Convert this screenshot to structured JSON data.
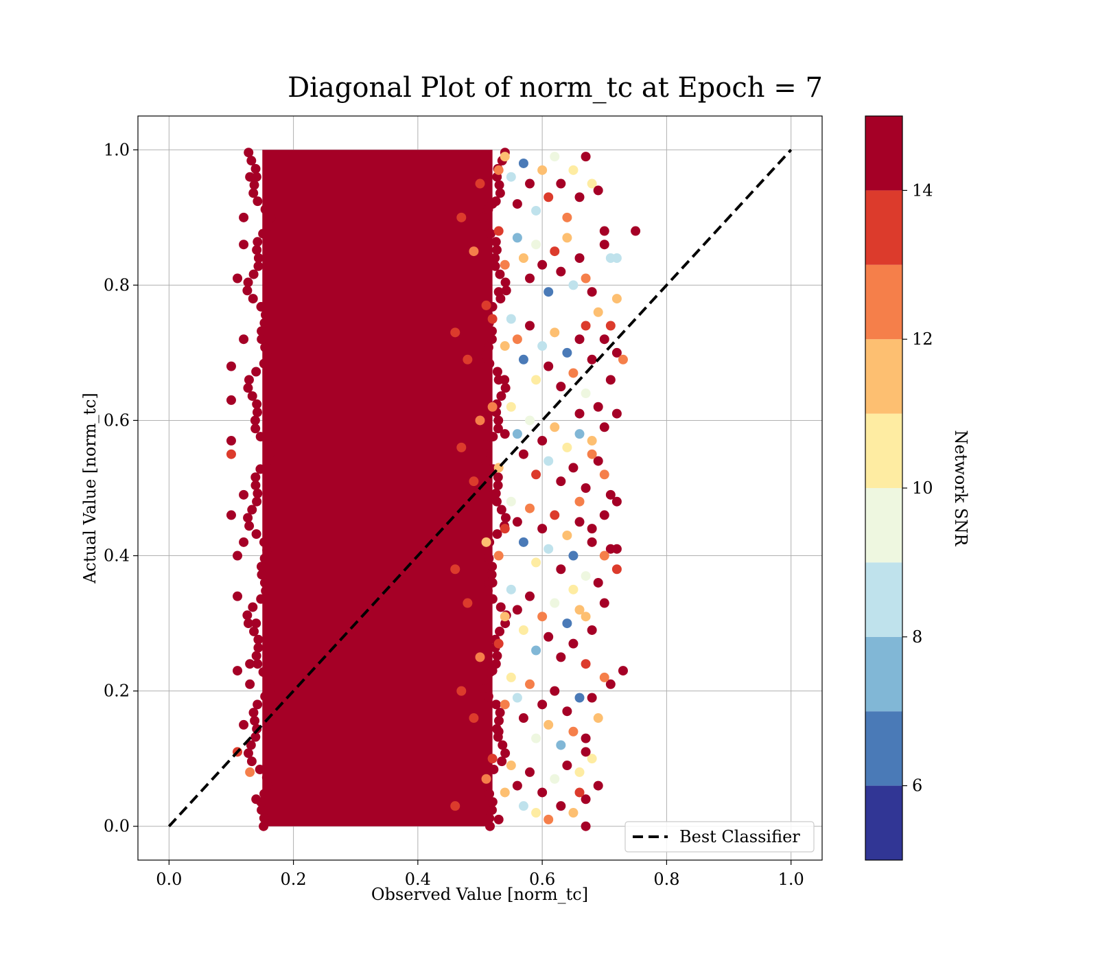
{
  "chart_data": {
    "type": "scatter",
    "title": "Diagonal Plot of norm_tc at Epoch = 7",
    "xlabel": "Observed Value [norm_tc]",
    "ylabel": "Actual Value [norm_tc]",
    "xlim": [
      -0.05,
      1.05
    ],
    "ylim": [
      -0.05,
      1.05
    ],
    "x_ticks": [
      0.0,
      0.2,
      0.4,
      0.6,
      0.8,
      1.0
    ],
    "y_ticks": [
      0.0,
      0.2,
      0.4,
      0.6,
      0.8,
      1.0
    ],
    "x_tick_labels": [
      "0.0",
      "0.2",
      "0.4",
      "0.6",
      "0.8",
      "1.0"
    ],
    "y_tick_labels": [
      "0.0",
      "0.2",
      "0.4",
      "0.6",
      "0.8",
      "1.0"
    ],
    "grid": true,
    "legend": {
      "placement": "lower-right",
      "entries": [
        "Best Classifier"
      ]
    },
    "reference_line": {
      "name": "Best Classifier",
      "style": "dashed",
      "color": "#000000",
      "x": [
        0.0,
        1.0
      ],
      "y": [
        0.0,
        1.0
      ]
    },
    "colorbar": {
      "label": "Network SNR",
      "range": [
        5,
        15
      ],
      "tick_values": [
        6,
        8,
        10,
        12,
        14
      ],
      "tick_labels": [
        "6",
        "8",
        "10",
        "12",
        "14"
      ],
      "bands": [
        {
          "from": 5,
          "to": 6,
          "color": "#313695"
        },
        {
          "from": 6,
          "to": 7,
          "color": "#4a7ab7"
        },
        {
          "from": 7,
          "to": 8,
          "color": "#81b7d6"
        },
        {
          "from": 8,
          "to": 9,
          "color": "#bfe2ec"
        },
        {
          "from": 9,
          "to": 10,
          "color": "#eef7e0"
        },
        {
          "from": 10,
          "to": 11,
          "color": "#feeca2"
        },
        {
          "from": 11,
          "to": 12,
          "color": "#fdbf71"
        },
        {
          "from": 12,
          "to": 13,
          "color": "#f57f4a"
        },
        {
          "from": 13,
          "to": 14,
          "color": "#dc3b2c"
        },
        {
          "from": 14,
          "to": 15,
          "color": "#a50026"
        }
      ]
    },
    "dense_region": {
      "x_range": [
        0.15,
        0.52
      ],
      "y_range": [
        0.0,
        1.0
      ],
      "snr": 15
    },
    "points": [
      {
        "x": 0.13,
        "y": 0.96,
        "snr": 15
      },
      {
        "x": 0.12,
        "y": 0.9,
        "snr": 15
      },
      {
        "x": 0.11,
        "y": 0.81,
        "snr": 15
      },
      {
        "x": 0.1,
        "y": 0.68,
        "snr": 15
      },
      {
        "x": 0.1,
        "y": 0.63,
        "snr": 15
      },
      {
        "x": 0.1,
        "y": 0.57,
        "snr": 15
      },
      {
        "x": 0.1,
        "y": 0.55,
        "snr": 13
      },
      {
        "x": 0.1,
        "y": 0.46,
        "snr": 15
      },
      {
        "x": 0.11,
        "y": 0.4,
        "snr": 15
      },
      {
        "x": 0.11,
        "y": 0.34,
        "snr": 15
      },
      {
        "x": 0.11,
        "y": 0.23,
        "snr": 14
      },
      {
        "x": 0.13,
        "y": 0.24,
        "snr": 15
      },
      {
        "x": 0.13,
        "y": 0.21,
        "snr": 15
      },
      {
        "x": 0.12,
        "y": 0.15,
        "snr": 15
      },
      {
        "x": 0.11,
        "y": 0.11,
        "snr": 13
      },
      {
        "x": 0.13,
        "y": 0.08,
        "snr": 12
      },
      {
        "x": 0.12,
        "y": 0.86,
        "snr": 15
      },
      {
        "x": 0.12,
        "y": 0.72,
        "snr": 15
      },
      {
        "x": 0.12,
        "y": 0.49,
        "snr": 15
      },
      {
        "x": 0.12,
        "y": 0.42,
        "snr": 15
      },
      {
        "x": 0.14,
        "y": 0.3,
        "snr": 15
      },
      {
        "x": 0.14,
        "y": 0.04,
        "snr": 15
      },
      {
        "x": 0.54,
        "y": 0.99,
        "snr": 11
      },
      {
        "x": 0.55,
        "y": 0.96,
        "snr": 8
      },
      {
        "x": 0.56,
        "y": 0.92,
        "snr": 14
      },
      {
        "x": 0.57,
        "y": 0.98,
        "snr": 6
      },
      {
        "x": 0.58,
        "y": 0.95,
        "snr": 15
      },
      {
        "x": 0.59,
        "y": 0.91,
        "snr": 8
      },
      {
        "x": 0.6,
        "y": 0.97,
        "snr": 11
      },
      {
        "x": 0.61,
        "y": 0.93,
        "snr": 13
      },
      {
        "x": 0.62,
        "y": 0.99,
        "snr": 9
      },
      {
        "x": 0.63,
        "y": 0.95,
        "snr": 15
      },
      {
        "x": 0.64,
        "y": 0.9,
        "snr": 12
      },
      {
        "x": 0.65,
        "y": 0.97,
        "snr": 10
      },
      {
        "x": 0.66,
        "y": 0.93,
        "snr": 15
      },
      {
        "x": 0.67,
        "y": 0.99,
        "snr": 15
      },
      {
        "x": 0.68,
        "y": 0.95,
        "snr": 10
      },
      {
        "x": 0.69,
        "y": 0.94,
        "snr": 15
      },
      {
        "x": 0.7,
        "y": 0.88,
        "snr": 15
      },
      {
        "x": 0.75,
        "y": 0.88,
        "snr": 15
      },
      {
        "x": 0.56,
        "y": 0.87,
        "snr": 7
      },
      {
        "x": 0.57,
        "y": 0.84,
        "snr": 11
      },
      {
        "x": 0.58,
        "y": 0.81,
        "snr": 15
      },
      {
        "x": 0.59,
        "y": 0.86,
        "snr": 9
      },
      {
        "x": 0.6,
        "y": 0.83,
        "snr": 15
      },
      {
        "x": 0.61,
        "y": 0.79,
        "snr": 6
      },
      {
        "x": 0.62,
        "y": 0.85,
        "snr": 13
      },
      {
        "x": 0.63,
        "y": 0.82,
        "snr": 15
      },
      {
        "x": 0.64,
        "y": 0.87,
        "snr": 11
      },
      {
        "x": 0.65,
        "y": 0.8,
        "snr": 8
      },
      {
        "x": 0.66,
        "y": 0.84,
        "snr": 15
      },
      {
        "x": 0.67,
        "y": 0.81,
        "snr": 12
      },
      {
        "x": 0.68,
        "y": 0.79,
        "snr": 15
      },
      {
        "x": 0.7,
        "y": 0.86,
        "snr": 15
      },
      {
        "x": 0.72,
        "y": 0.84,
        "snr": 8
      },
      {
        "x": 0.69,
        "y": 0.76,
        "snr": 11
      },
      {
        "x": 0.7,
        "y": 0.72,
        "snr": 15
      },
      {
        "x": 0.71,
        "y": 0.74,
        "snr": 13
      },
      {
        "x": 0.72,
        "y": 0.78,
        "snr": 11
      },
      {
        "x": 0.72,
        "y": 0.7,
        "snr": 15
      },
      {
        "x": 0.73,
        "y": 0.69,
        "snr": 12
      },
      {
        "x": 0.71,
        "y": 0.66,
        "snr": 15
      },
      {
        "x": 0.72,
        "y": 0.61,
        "snr": 15
      },
      {
        "x": 0.7,
        "y": 0.59,
        "snr": 15
      },
      {
        "x": 0.69,
        "y": 0.62,
        "snr": 14
      },
      {
        "x": 0.68,
        "y": 0.57,
        "snr": 11
      },
      {
        "x": 0.69,
        "y": 0.54,
        "snr": 15
      },
      {
        "x": 0.7,
        "y": 0.52,
        "snr": 12
      },
      {
        "x": 0.71,
        "y": 0.49,
        "snr": 15
      },
      {
        "x": 0.72,
        "y": 0.48,
        "snr": 15
      },
      {
        "x": 0.7,
        "y": 0.46,
        "snr": 15
      },
      {
        "x": 0.68,
        "y": 0.44,
        "snr": 15
      },
      {
        "x": 0.71,
        "y": 0.41,
        "snr": 15
      },
      {
        "x": 0.72,
        "y": 0.41,
        "snr": 14
      },
      {
        "x": 0.7,
        "y": 0.4,
        "snr": 12
      },
      {
        "x": 0.72,
        "y": 0.38,
        "snr": 13
      },
      {
        "x": 0.69,
        "y": 0.36,
        "snr": 15
      },
      {
        "x": 0.7,
        "y": 0.33,
        "snr": 15
      },
      {
        "x": 0.67,
        "y": 0.31,
        "snr": 11
      },
      {
        "x": 0.73,
        "y": 0.23,
        "snr": 15
      },
      {
        "x": 0.71,
        "y": 0.21,
        "snr": 14
      },
      {
        "x": 0.7,
        "y": 0.22,
        "snr": 12
      },
      {
        "x": 0.68,
        "y": 0.19,
        "snr": 14
      },
      {
        "x": 0.69,
        "y": 0.16,
        "snr": 11
      },
      {
        "x": 0.67,
        "y": 0.13,
        "snr": 15
      },
      {
        "x": 0.68,
        "y": 0.1,
        "snr": 10
      },
      {
        "x": 0.69,
        "y": 0.06,
        "snr": 15
      },
      {
        "x": 0.67,
        "y": 0.04,
        "snr": 15
      },
      {
        "x": 0.67,
        "y": 0.0,
        "snr": 15
      },
      {
        "x": 0.71,
        "y": 0.84,
        "snr": 8
      },
      {
        "x": 0.55,
        "y": 0.75,
        "snr": 8
      },
      {
        "x": 0.56,
        "y": 0.72,
        "snr": 12
      },
      {
        "x": 0.57,
        "y": 0.69,
        "snr": 6
      },
      {
        "x": 0.58,
        "y": 0.74,
        "snr": 15
      },
      {
        "x": 0.59,
        "y": 0.66,
        "snr": 10
      },
      {
        "x": 0.6,
        "y": 0.71,
        "snr": 8
      },
      {
        "x": 0.61,
        "y": 0.68,
        "snr": 15
      },
      {
        "x": 0.62,
        "y": 0.73,
        "snr": 11
      },
      {
        "x": 0.63,
        "y": 0.65,
        "snr": 14
      },
      {
        "x": 0.64,
        "y": 0.7,
        "snr": 6
      },
      {
        "x": 0.65,
        "y": 0.67,
        "snr": 12
      },
      {
        "x": 0.66,
        "y": 0.72,
        "snr": 15
      },
      {
        "x": 0.67,
        "y": 0.64,
        "snr": 9
      },
      {
        "x": 0.68,
        "y": 0.69,
        "snr": 15
      },
      {
        "x": 0.67,
        "y": 0.74,
        "snr": 13
      },
      {
        "x": 0.55,
        "y": 0.62,
        "snr": 10
      },
      {
        "x": 0.56,
        "y": 0.58,
        "snr": 7
      },
      {
        "x": 0.57,
        "y": 0.55,
        "snr": 15
      },
      {
        "x": 0.58,
        "y": 0.6,
        "snr": 9
      },
      {
        "x": 0.59,
        "y": 0.52,
        "snr": 13
      },
      {
        "x": 0.6,
        "y": 0.57,
        "snr": 15
      },
      {
        "x": 0.61,
        "y": 0.54,
        "snr": 8
      },
      {
        "x": 0.62,
        "y": 0.59,
        "snr": 11
      },
      {
        "x": 0.63,
        "y": 0.51,
        "snr": 15
      },
      {
        "x": 0.64,
        "y": 0.56,
        "snr": 10
      },
      {
        "x": 0.65,
        "y": 0.53,
        "snr": 14
      },
      {
        "x": 0.66,
        "y": 0.58,
        "snr": 7
      },
      {
        "x": 0.67,
        "y": 0.5,
        "snr": 15
      },
      {
        "x": 0.68,
        "y": 0.55,
        "snr": 12
      },
      {
        "x": 0.66,
        "y": 0.61,
        "snr": 15
      },
      {
        "x": 0.55,
        "y": 0.48,
        "snr": 9
      },
      {
        "x": 0.56,
        "y": 0.45,
        "snr": 15
      },
      {
        "x": 0.57,
        "y": 0.42,
        "snr": 6
      },
      {
        "x": 0.58,
        "y": 0.47,
        "snr": 12
      },
      {
        "x": 0.59,
        "y": 0.39,
        "snr": 10
      },
      {
        "x": 0.6,
        "y": 0.44,
        "snr": 15
      },
      {
        "x": 0.61,
        "y": 0.41,
        "snr": 8
      },
      {
        "x": 0.62,
        "y": 0.46,
        "snr": 13
      },
      {
        "x": 0.63,
        "y": 0.38,
        "snr": 15
      },
      {
        "x": 0.64,
        "y": 0.43,
        "snr": 11
      },
      {
        "x": 0.65,
        "y": 0.4,
        "snr": 6
      },
      {
        "x": 0.66,
        "y": 0.45,
        "snr": 15
      },
      {
        "x": 0.67,
        "y": 0.37,
        "snr": 9
      },
      {
        "x": 0.68,
        "y": 0.42,
        "snr": 15
      },
      {
        "x": 0.66,
        "y": 0.48,
        "snr": 12
      },
      {
        "x": 0.55,
        "y": 0.35,
        "snr": 8
      },
      {
        "x": 0.56,
        "y": 0.32,
        "snr": 14
      },
      {
        "x": 0.57,
        "y": 0.29,
        "snr": 10
      },
      {
        "x": 0.58,
        "y": 0.34,
        "snr": 15
      },
      {
        "x": 0.59,
        "y": 0.26,
        "snr": 7
      },
      {
        "x": 0.6,
        "y": 0.31,
        "snr": 12
      },
      {
        "x": 0.61,
        "y": 0.28,
        "snr": 15
      },
      {
        "x": 0.62,
        "y": 0.33,
        "snr": 9
      },
      {
        "x": 0.63,
        "y": 0.25,
        "snr": 14
      },
      {
        "x": 0.64,
        "y": 0.3,
        "snr": 6
      },
      {
        "x": 0.65,
        "y": 0.27,
        "snr": 15
      },
      {
        "x": 0.66,
        "y": 0.32,
        "snr": 11
      },
      {
        "x": 0.67,
        "y": 0.24,
        "snr": 13
      },
      {
        "x": 0.68,
        "y": 0.29,
        "snr": 15
      },
      {
        "x": 0.65,
        "y": 0.35,
        "snr": 10
      },
      {
        "x": 0.55,
        "y": 0.22,
        "snr": 10
      },
      {
        "x": 0.56,
        "y": 0.19,
        "snr": 8
      },
      {
        "x": 0.57,
        "y": 0.16,
        "snr": 15
      },
      {
        "x": 0.58,
        "y": 0.21,
        "snr": 12
      },
      {
        "x": 0.59,
        "y": 0.13,
        "snr": 9
      },
      {
        "x": 0.6,
        "y": 0.18,
        "snr": 15
      },
      {
        "x": 0.61,
        "y": 0.15,
        "snr": 11
      },
      {
        "x": 0.62,
        "y": 0.2,
        "snr": 14
      },
      {
        "x": 0.63,
        "y": 0.12,
        "snr": 7
      },
      {
        "x": 0.64,
        "y": 0.17,
        "snr": 15
      },
      {
        "x": 0.65,
        "y": 0.14,
        "snr": 12
      },
      {
        "x": 0.66,
        "y": 0.19,
        "snr": 6
      },
      {
        "x": 0.67,
        "y": 0.11,
        "snr": 15
      },
      {
        "x": 0.66,
        "y": 0.08,
        "snr": 10
      },
      {
        "x": 0.64,
        "y": 0.09,
        "snr": 15
      },
      {
        "x": 0.55,
        "y": 0.09,
        "snr": 11
      },
      {
        "x": 0.56,
        "y": 0.06,
        "snr": 15
      },
      {
        "x": 0.57,
        "y": 0.03,
        "snr": 8
      },
      {
        "x": 0.58,
        "y": 0.08,
        "snr": 14
      },
      {
        "x": 0.59,
        "y": 0.02,
        "snr": 10
      },
      {
        "x": 0.6,
        "y": 0.05,
        "snr": 15
      },
      {
        "x": 0.61,
        "y": 0.01,
        "snr": 12
      },
      {
        "x": 0.62,
        "y": 0.07,
        "snr": 9
      },
      {
        "x": 0.63,
        "y": 0.03,
        "snr": 15
      },
      {
        "x": 0.65,
        "y": 0.02,
        "snr": 11
      },
      {
        "x": 0.66,
        "y": 0.05,
        "snr": 13
      },
      {
        "x": 0.53,
        "y": 0.97,
        "snr": 12
      },
      {
        "x": 0.52,
        "y": 0.92,
        "snr": 15
      },
      {
        "x": 0.53,
        "y": 0.88,
        "snr": 13
      },
      {
        "x": 0.54,
        "y": 0.83,
        "snr": 12
      },
      {
        "x": 0.53,
        "y": 0.79,
        "snr": 15
      },
      {
        "x": 0.52,
        "y": 0.75,
        "snr": 13
      },
      {
        "x": 0.54,
        "y": 0.71,
        "snr": 11
      },
      {
        "x": 0.53,
        "y": 0.66,
        "snr": 15
      },
      {
        "x": 0.52,
        "y": 0.62,
        "snr": 12
      },
      {
        "x": 0.54,
        "y": 0.58,
        "snr": 14
      },
      {
        "x": 0.53,
        "y": 0.53,
        "snr": 11
      },
      {
        "x": 0.52,
        "y": 0.49,
        "snr": 15
      },
      {
        "x": 0.54,
        "y": 0.44,
        "snr": 13
      },
      {
        "x": 0.53,
        "y": 0.4,
        "snr": 12
      },
      {
        "x": 0.52,
        "y": 0.36,
        "snr": 15
      },
      {
        "x": 0.54,
        "y": 0.31,
        "snr": 11
      },
      {
        "x": 0.53,
        "y": 0.27,
        "snr": 13
      },
      {
        "x": 0.52,
        "y": 0.23,
        "snr": 15
      },
      {
        "x": 0.54,
        "y": 0.18,
        "snr": 12
      },
      {
        "x": 0.53,
        "y": 0.14,
        "snr": 15
      },
      {
        "x": 0.52,
        "y": 0.1,
        "snr": 13
      },
      {
        "x": 0.54,
        "y": 0.05,
        "snr": 11
      },
      {
        "x": 0.53,
        "y": 0.01,
        "snr": 15
      },
      {
        "x": 0.5,
        "y": 0.95,
        "snr": 13
      },
      {
        "x": 0.49,
        "y": 0.85,
        "snr": 12
      },
      {
        "x": 0.51,
        "y": 0.77,
        "snr": 13
      },
      {
        "x": 0.48,
        "y": 0.69,
        "snr": 13
      },
      {
        "x": 0.5,
        "y": 0.6,
        "snr": 12
      },
      {
        "x": 0.49,
        "y": 0.51,
        "snr": 13
      },
      {
        "x": 0.51,
        "y": 0.42,
        "snr": 11
      },
      {
        "x": 0.48,
        "y": 0.33,
        "snr": 13
      },
      {
        "x": 0.5,
        "y": 0.25,
        "snr": 12
      },
      {
        "x": 0.49,
        "y": 0.16,
        "snr": 13
      },
      {
        "x": 0.51,
        "y": 0.07,
        "snr": 12
      },
      {
        "x": 0.47,
        "y": 0.9,
        "snr": 13
      },
      {
        "x": 0.46,
        "y": 0.73,
        "snr": 13
      },
      {
        "x": 0.47,
        "y": 0.56,
        "snr": 13
      },
      {
        "x": 0.46,
        "y": 0.38,
        "snr": 13
      },
      {
        "x": 0.47,
        "y": 0.2,
        "snr": 13
      },
      {
        "x": 0.46,
        "y": 0.03,
        "snr": 13
      }
    ]
  }
}
